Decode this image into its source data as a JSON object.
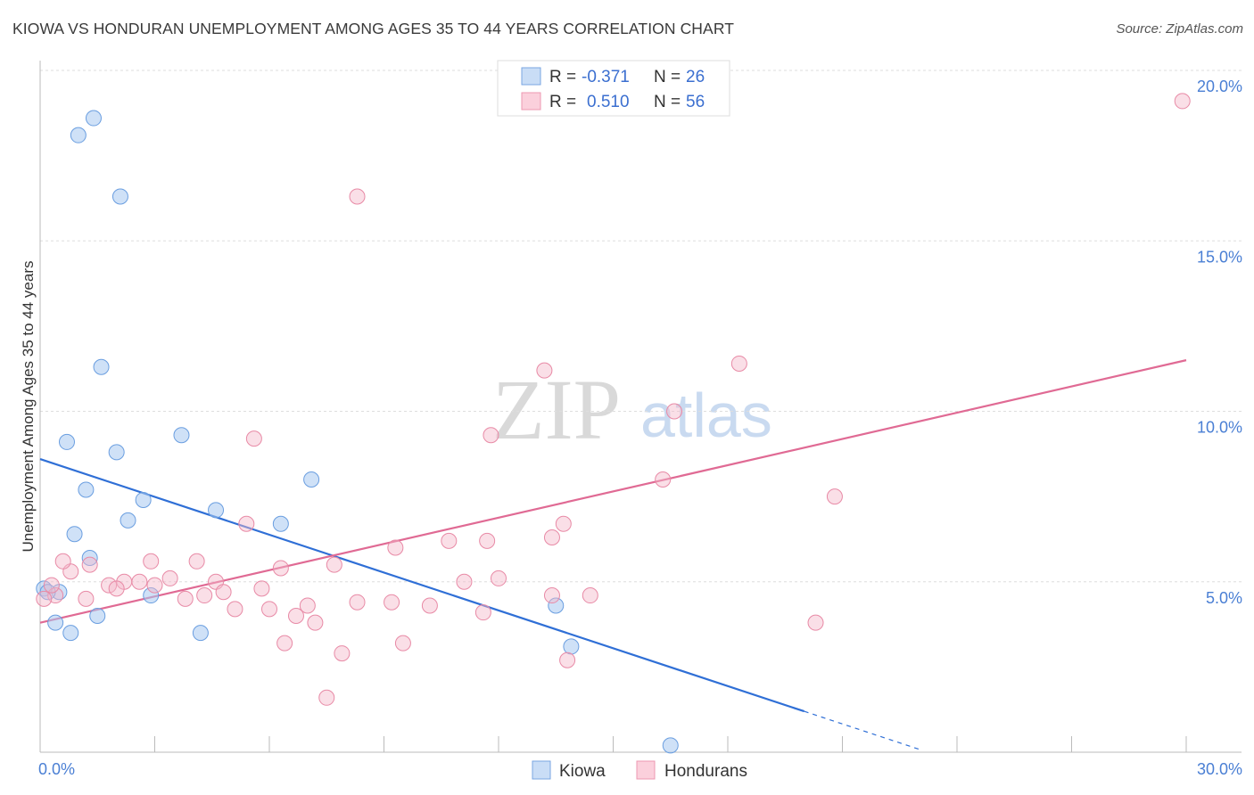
{
  "header": {
    "title": "KIOWA VS HONDURAN UNEMPLOYMENT AMONG AGES 35 TO 44 YEARS CORRELATION CHART",
    "source": "Source: ZipAtlas.com"
  },
  "watermark": {
    "zip": "ZIP",
    "atlas": "atlas"
  },
  "legend": {
    "rows": [
      {
        "r_label": "R =",
        "r_value": "-0.371",
        "n_label": "N =",
        "n_value": "26",
        "color": "#a8c8f0"
      },
      {
        "r_label": "R =",
        "r_value": "0.510",
        "n_label": "N =",
        "n_value": "56",
        "color": "#f5b8c9"
      }
    ]
  },
  "bottom_legend": {
    "items": [
      "Kiowa",
      "Hondurans"
    ]
  },
  "chart_data": {
    "type": "scatter",
    "title": "KIOWA VS HONDURAN UNEMPLOYMENT AMONG AGES 35 TO 44 YEARS CORRELATION CHART",
    "xlabel": "",
    "ylabel": "Unemployment Among Ages 35 to 44 years",
    "xlim": [
      0,
      30
    ],
    "ylim": [
      0,
      20
    ],
    "x_tick_labels": [
      "0.0%",
      "30.0%"
    ],
    "y_ticks": [
      5,
      10,
      15,
      20
    ],
    "y_tick_labels": [
      "5.0%",
      "10.0%",
      "15.0%",
      "20.0%"
    ],
    "grid": true,
    "legend_position": "top-center",
    "series": [
      {
        "name": "Kiowa",
        "color": "#a8c8f0",
        "edge_color": "#6a9ee0",
        "trend_color": "#2f6fd6",
        "trend": {
          "x": [
            0,
            20
          ],
          "y": [
            8.6,
            1.2
          ],
          "dashed_to_x": 23
        },
        "points": [
          [
            1.4,
            18.6
          ],
          [
            1.0,
            18.1
          ],
          [
            2.1,
            16.3
          ],
          [
            1.6,
            11.3
          ],
          [
            0.7,
            9.1
          ],
          [
            3.7,
            9.3
          ],
          [
            2.0,
            8.8
          ],
          [
            1.2,
            7.7
          ],
          [
            2.7,
            7.4
          ],
          [
            7.1,
            8.0
          ],
          [
            4.6,
            7.1
          ],
          [
            2.3,
            6.8
          ],
          [
            6.3,
            6.7
          ],
          [
            0.9,
            6.4
          ],
          [
            1.3,
            5.7
          ],
          [
            0.1,
            4.8
          ],
          [
            0.5,
            4.7
          ],
          [
            2.9,
            4.6
          ],
          [
            0.4,
            3.8
          ],
          [
            1.5,
            4.0
          ],
          [
            0.8,
            3.5
          ],
          [
            4.2,
            3.5
          ],
          [
            13.5,
            4.3
          ],
          [
            13.9,
            3.1
          ],
          [
            16.5,
            0.2
          ],
          [
            0.2,
            4.7
          ]
        ]
      },
      {
        "name": "Hondurans",
        "color": "#f5b8c9",
        "edge_color": "#e88aa6",
        "trend_color": "#e06a94",
        "trend": {
          "x": [
            0,
            30
          ],
          "y": [
            3.8,
            11.5
          ]
        },
        "points": [
          [
            29.9,
            19.1
          ],
          [
            8.3,
            16.3
          ],
          [
            18.3,
            11.4
          ],
          [
            13.2,
            11.2
          ],
          [
            16.6,
            10.0
          ],
          [
            11.8,
            9.3
          ],
          [
            5.6,
            9.2
          ],
          [
            16.3,
            8.0
          ],
          [
            20.8,
            7.5
          ],
          [
            5.4,
            6.7
          ],
          [
            13.7,
            6.7
          ],
          [
            13.4,
            6.3
          ],
          [
            10.7,
            6.2
          ],
          [
            9.3,
            6.0
          ],
          [
            11.7,
            6.2
          ],
          [
            2.9,
            5.6
          ],
          [
            4.1,
            5.6
          ],
          [
            7.7,
            5.5
          ],
          [
            6.3,
            5.4
          ],
          [
            1.3,
            5.5
          ],
          [
            0.8,
            5.3
          ],
          [
            3.4,
            5.1
          ],
          [
            4.6,
            5.0
          ],
          [
            2.6,
            5.0
          ],
          [
            2.2,
            5.0
          ],
          [
            1.8,
            4.9
          ],
          [
            3.0,
            4.9
          ],
          [
            5.8,
            4.8
          ],
          [
            11.1,
            5.0
          ],
          [
            13.4,
            4.6
          ],
          [
            14.4,
            4.6
          ],
          [
            4.8,
            4.7
          ],
          [
            4.3,
            4.6
          ],
          [
            3.8,
            4.5
          ],
          [
            1.2,
            4.5
          ],
          [
            0.4,
            4.6
          ],
          [
            0.1,
            4.5
          ],
          [
            8.3,
            4.4
          ],
          [
            9.2,
            4.4
          ],
          [
            10.2,
            4.3
          ],
          [
            7.0,
            4.3
          ],
          [
            5.1,
            4.2
          ],
          [
            6.0,
            4.2
          ],
          [
            6.7,
            4.0
          ],
          [
            11.6,
            4.1
          ],
          [
            7.2,
            3.8
          ],
          [
            20.3,
            3.8
          ],
          [
            6.4,
            3.2
          ],
          [
            9.5,
            3.2
          ],
          [
            7.9,
            2.9
          ],
          [
            13.8,
            2.7
          ],
          [
            7.5,
            1.6
          ],
          [
            0.6,
            5.6
          ],
          [
            0.3,
            4.9
          ],
          [
            2.0,
            4.8
          ],
          [
            12.0,
            5.1
          ]
        ]
      }
    ]
  }
}
